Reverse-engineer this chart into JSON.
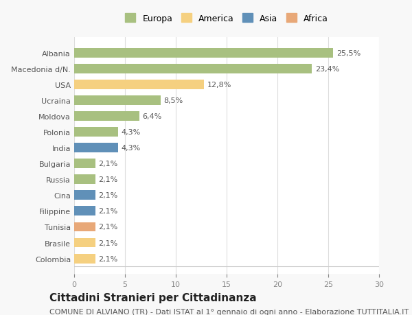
{
  "categories": [
    "Albania",
    "Macedonia d/N.",
    "USA",
    "Ucraina",
    "Moldova",
    "Polonia",
    "India",
    "Bulgaria",
    "Russia",
    "Cina",
    "Filippine",
    "Tunisia",
    "Brasile",
    "Colombia"
  ],
  "values": [
    25.5,
    23.4,
    12.8,
    8.5,
    6.4,
    4.3,
    4.3,
    2.1,
    2.1,
    2.1,
    2.1,
    2.1,
    2.1,
    2.1
  ],
  "labels": [
    "25,5%",
    "23,4%",
    "12,8%",
    "8,5%",
    "6,4%",
    "4,3%",
    "4,3%",
    "2,1%",
    "2,1%",
    "2,1%",
    "2,1%",
    "2,1%",
    "2,1%",
    "2,1%"
  ],
  "colors": [
    "#a8c080",
    "#a8c080",
    "#f5d080",
    "#a8c080",
    "#a8c080",
    "#a8c080",
    "#6090b8",
    "#a8c080",
    "#a8c080",
    "#6090b8",
    "#6090b8",
    "#e8a878",
    "#f5d080",
    "#f5d080"
  ],
  "continent_labels": [
    "Europa",
    "America",
    "Asia",
    "Africa"
  ],
  "continent_colors": [
    "#a8c080",
    "#f5d080",
    "#6090b8",
    "#e8a878"
  ],
  "xlim": [
    0,
    30
  ],
  "xticks": [
    0,
    5,
    10,
    15,
    20,
    25,
    30
  ],
  "title": "Cittadini Stranieri per Cittadinanza",
  "subtitle": "COMUNE DI ALVIANO (TR) - Dati ISTAT al 1° gennaio di ogni anno - Elaborazione TUTTITALIA.IT",
  "background_color": "#f8f8f8",
  "bar_background": "#ffffff",
  "grid_color": "#dddddd",
  "title_fontsize": 11,
  "subtitle_fontsize": 8,
  "label_fontsize": 8,
  "tick_fontsize": 8
}
